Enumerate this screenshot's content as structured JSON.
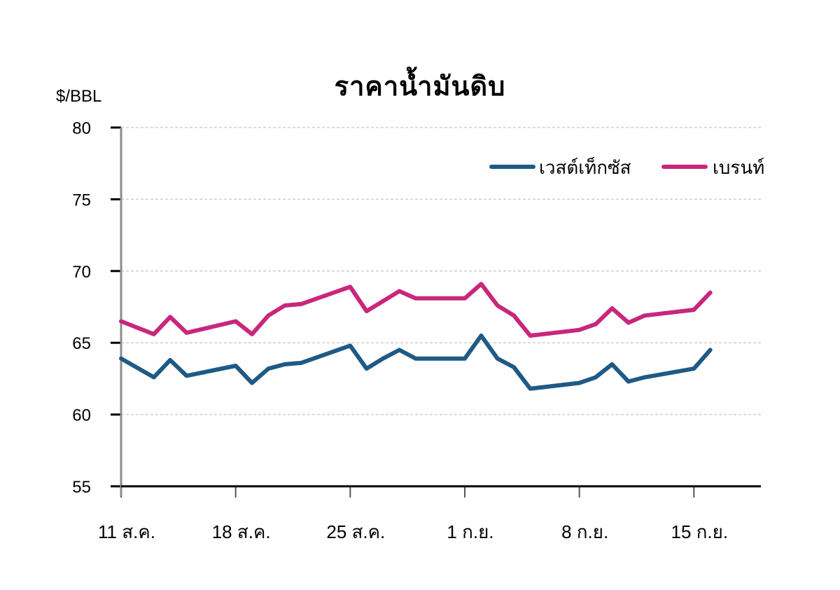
{
  "chart_data": {
    "type": "line",
    "title": "ราคาน้ำมันดิบ",
    "ylabel": "$/BBL",
    "xlabel": "",
    "ylim": [
      55,
      80
    ],
    "yticks": [
      55,
      60,
      65,
      70,
      75,
      80
    ],
    "grid": true,
    "legend_position": "top-right",
    "x_tick_labels": [
      "11 ส.ค.",
      "18 ส.ค.",
      "25 ส.ค.",
      "1 ก.ย.",
      "8 ก.ย.",
      "15 ก.ย."
    ],
    "x_tick_days": [
      0,
      7,
      14,
      21,
      28,
      35
    ],
    "x_days_range": [
      0,
      39
    ],
    "x": [
      0,
      2,
      3,
      4,
      7,
      8,
      9,
      10,
      11,
      14,
      15,
      16,
      17,
      18,
      21,
      22,
      23,
      24,
      25,
      28,
      29,
      30,
      31,
      32,
      35,
      36
    ],
    "series": [
      {
        "name": "เวสต์เท็กซัส",
        "color": "#1f5a85",
        "values": [
          63.9,
          62.6,
          63.8,
          62.7,
          63.4,
          62.2,
          63.2,
          63.5,
          63.6,
          64.8,
          63.2,
          63.9,
          64.5,
          63.9,
          63.9,
          65.5,
          63.9,
          63.3,
          61.8,
          62.2,
          62.6,
          63.5,
          62.3,
          62.6,
          63.2,
          64.5
        ]
      },
      {
        "name": "เบรนท์",
        "color": "#c8277c",
        "values": [
          66.5,
          65.6,
          66.8,
          65.7,
          66.5,
          65.6,
          66.9,
          67.6,
          67.7,
          68.9,
          67.2,
          67.9,
          68.6,
          68.1,
          68.1,
          69.1,
          67.6,
          66.9,
          65.5,
          65.9,
          66.3,
          67.4,
          66.4,
          66.9,
          67.3,
          68.5
        ]
      }
    ]
  }
}
